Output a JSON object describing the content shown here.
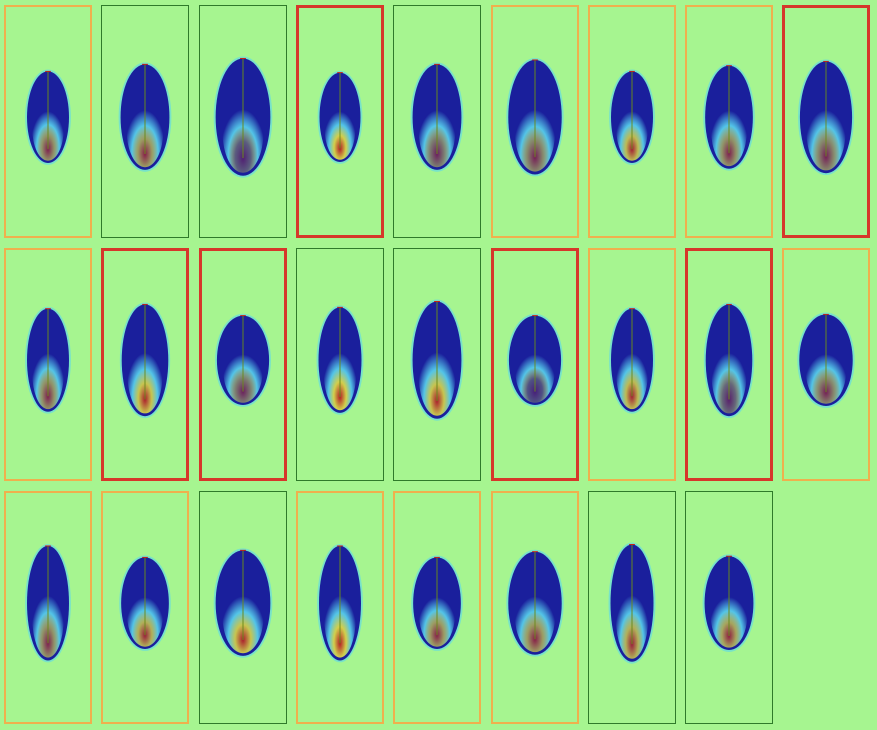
{
  "grid": {
    "colors": {
      "background": "#a6f590",
      "frame_green": "#2f7a2a",
      "frame_orange": "#efb04d",
      "frame_red": "#d6372a",
      "blob_base": "#1a1f9c",
      "blob_halo": "#5ad7f0",
      "heat_mid": "#f2ee3c",
      "heat_high": "#cf1e10",
      "axis_line": "#6a8a1c"
    },
    "rows": [
      [
        {
          "frame": "orange",
          "heat": 0.55
        },
        {
          "frame": "green",
          "heat": 0.6
        },
        {
          "frame": "green",
          "heat": 0.3
        },
        {
          "frame": "red",
          "heat": 0.85
        },
        {
          "frame": "green",
          "heat": 0.45
        },
        {
          "frame": "orange",
          "heat": 0.5
        },
        {
          "frame": "orange",
          "heat": 0.75
        },
        {
          "frame": "orange",
          "heat": 0.55
        },
        {
          "frame": "red",
          "heat": 0.5
        }
      ],
      [
        {
          "frame": "orange",
          "heat": 0.55
        },
        {
          "frame": "red",
          "heat": 0.8
        },
        {
          "frame": "red",
          "heat": 0.45
        },
        {
          "frame": "green",
          "heat": 0.85
        },
        {
          "frame": "green",
          "heat": 0.8
        },
        {
          "frame": "red",
          "heat": 0.25
        },
        {
          "frame": "orange",
          "heat": 0.75
        },
        {
          "frame": "red",
          "heat": 0.35
        },
        {
          "frame": "orange",
          "heat": 0.5
        }
      ],
      [
        {
          "frame": "orange",
          "heat": 0.55
        },
        {
          "frame": "orange",
          "heat": 0.7
        },
        {
          "frame": "green",
          "heat": 0.8
        },
        {
          "frame": "orange",
          "heat": 0.85
        },
        {
          "frame": "orange",
          "heat": 0.6
        },
        {
          "frame": "orange",
          "heat": 0.6
        },
        {
          "frame": "green",
          "heat": 0.7
        },
        {
          "frame": "green",
          "heat": 0.65
        }
      ]
    ]
  }
}
